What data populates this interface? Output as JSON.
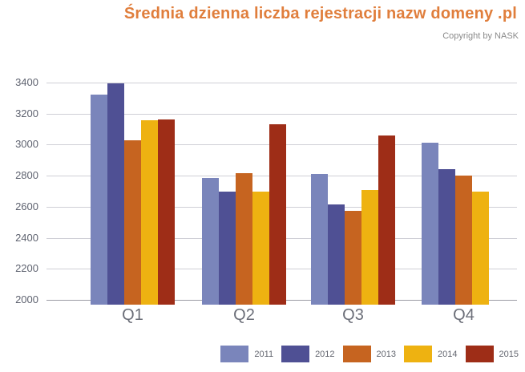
{
  "header": {
    "title": "Średnia dzienna liczba rejestracji nazw domeny .pl",
    "copyright": "Copyright by NASK"
  },
  "colors": {
    "title": "#e07e3c",
    "copyright": "#8a8a8a",
    "y_tick_label": "#5f6370",
    "x_tick_label": "#6b6e78",
    "legend_label": "#63666f",
    "gridline": "#cfcfd6",
    "axis_line": "#9b9ba4"
  },
  "chart_data": {
    "type": "bar",
    "title": "Średnia dzienna liczba rejestracji nazw domeny .pl",
    "subtitle": "Copyright by NASK",
    "categories": [
      "Q1",
      "Q2",
      "Q3",
      "Q4"
    ],
    "series": [
      {
        "name": "2011",
        "color": "#7a85bb",
        "values": [
          3325,
          2785,
          2810,
          3015
        ]
      },
      {
        "name": "2012",
        "color": "#4f5094",
        "values": [
          3395,
          2700,
          2615,
          2840
        ]
      },
      {
        "name": "2013",
        "color": "#c66420",
        "values": [
          3030,
          2815,
          2575,
          2800
        ]
      },
      {
        "name": "2014",
        "color": "#eeb211",
        "values": [
          3155,
          2700,
          2710,
          2700
        ]
      },
      {
        "name": "2015",
        "color": "#9e2d17",
        "values": [
          3160,
          3130,
          3060,
          null
        ]
      }
    ],
    "xlabel": "",
    "ylabel": "",
    "ylim": [
      2000,
      3400
    ],
    "y_ticks": [
      3400,
      3200,
      3000,
      2800,
      2600,
      2400,
      2200,
      2000
    ],
    "grid": true,
    "legend_position": "bottom-right"
  }
}
